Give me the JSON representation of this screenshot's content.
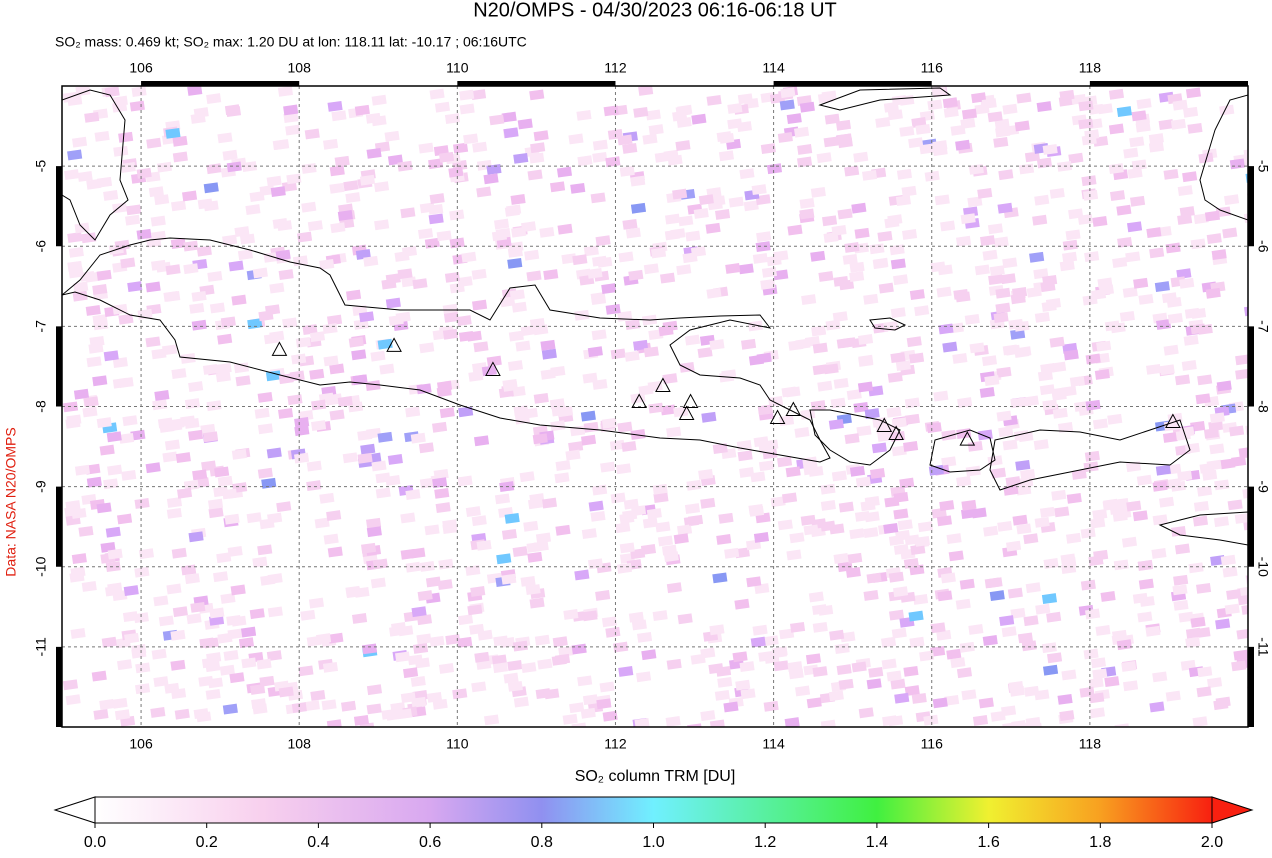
{
  "title": "N20/OMPS - 04/30/2023 06:16-06:18 UT",
  "subtitle": "SO₂ mass: 0.469 kt; SO₂ max: 1.20 DU at lon: 118.11 lat: -10.17 ; 06:16UTC",
  "credit": "Data: NASA N20/OMPS",
  "map": {
    "xlim": [
      105,
      120
    ],
    "ylim": [
      -12,
      -4
    ],
    "xticks": [
      106,
      108,
      110,
      112,
      114,
      116,
      118
    ],
    "yticks": [
      -5,
      -6,
      -7,
      -8,
      -9,
      -10,
      -11
    ],
    "volcanoes": [
      {
        "lon": 107.75,
        "lat": -7.3
      },
      {
        "lon": 109.2,
        "lat": -7.25
      },
      {
        "lon": 110.45,
        "lat": -7.55
      },
      {
        "lon": 112.3,
        "lat": -7.95
      },
      {
        "lon": 112.6,
        "lat": -7.75
      },
      {
        "lon": 112.95,
        "lat": -7.95
      },
      {
        "lon": 112.9,
        "lat": -8.1
      },
      {
        "lon": 114.05,
        "lat": -8.15
      },
      {
        "lon": 114.25,
        "lat": -8.05
      },
      {
        "lon": 115.4,
        "lat": -8.25
      },
      {
        "lon": 115.55,
        "lat": -8.35
      },
      {
        "lon": 116.45,
        "lat": -8.42
      },
      {
        "lon": 119.05,
        "lat": -8.2
      }
    ]
  },
  "colorbar": {
    "label": "SO₂ column TRM [DU]",
    "lim": [
      0,
      2
    ],
    "ticks": [
      {
        "value": 0,
        "label": "0.0"
      },
      {
        "value": 0.2,
        "label": "0.2"
      },
      {
        "value": 0.4,
        "label": "0.4"
      },
      {
        "value": 0.6,
        "label": "0.6"
      },
      {
        "value": 0.8,
        "label": "0.8"
      },
      {
        "value": 1,
        "label": "1.0"
      },
      {
        "value": 1.2,
        "label": "1.2"
      },
      {
        "value": 1.4,
        "label": "1.4"
      },
      {
        "value": 1.6,
        "label": "1.6"
      },
      {
        "value": 1.8,
        "label": "1.8"
      },
      {
        "value": 2,
        "label": "2.0"
      }
    ]
  }
}
